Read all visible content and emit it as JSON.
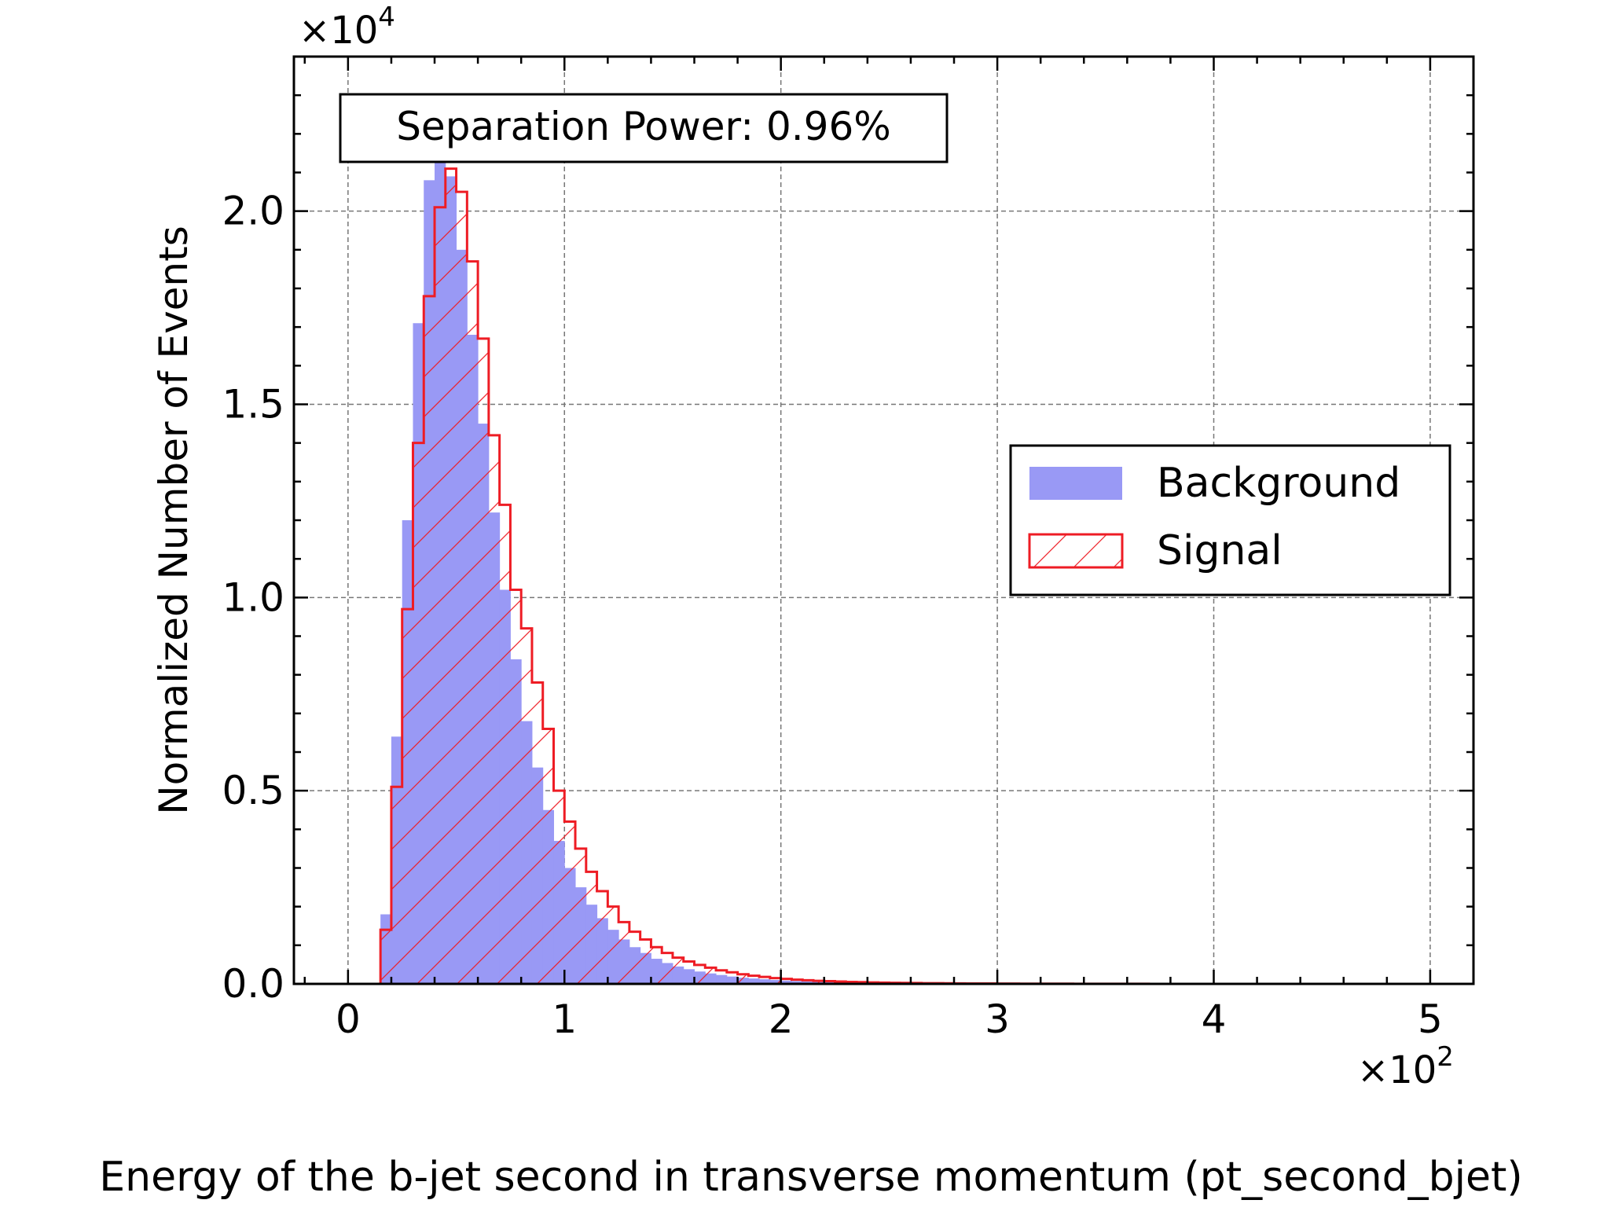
{
  "chart_data": {
    "type": "bar",
    "title": "",
    "xlabel": "Energy of the b-jet second in transverse momentum (pt_second_bjet)",
    "ylabel": "Normalized Number of Events",
    "x_multiplier_label": "×10",
    "x_multiplier_exp": "2",
    "y_multiplier_label": "×10",
    "y_multiplier_exp": "4",
    "xlim": [
      -25,
      520
    ],
    "ylim": [
      0,
      24000
    ],
    "x_ticks": [
      0,
      100,
      200,
      300,
      400,
      500
    ],
    "x_tick_labels": [
      "0",
      "1",
      "2",
      "3",
      "4",
      "5"
    ],
    "y_ticks": [
      0,
      5000,
      10000,
      15000,
      20000
    ],
    "y_tick_labels": [
      "0.0",
      "0.5",
      "1.0",
      "1.5",
      "2.0"
    ],
    "grid": true,
    "legend_position": "center-right",
    "annotation": "Separation Power: 0.96%",
    "bin_start": 15,
    "bin_width": 5,
    "series": [
      {
        "name": "Background",
        "style": "filled",
        "color": "#9999f5",
        "values": [
          1800,
          6400,
          12000,
          17100,
          20800,
          22200,
          20900,
          19000,
          16800,
          14500,
          12200,
          10200,
          8400,
          6800,
          5600,
          4500,
          3700,
          3000,
          2500,
          2050,
          1700,
          1400,
          1150,
          950,
          800,
          650,
          540,
          450,
          380,
          320,
          270,
          230,
          190,
          160,
          140,
          120,
          100,
          85,
          72,
          62,
          53,
          45,
          38,
          33,
          28,
          24,
          21,
          18,
          15,
          13,
          11,
          10,
          9,
          8,
          7,
          6,
          5,
          5,
          4,
          4,
          3,
          3,
          3,
          2,
          2,
          2,
          2,
          2,
          1,
          1,
          1,
          1,
          1,
          1,
          1,
          1,
          1
        ]
      },
      {
        "name": "Signal",
        "style": "hatched-step",
        "color": "#ee1c24",
        "values": [
          1400,
          5100,
          9700,
          14000,
          17800,
          20100,
          21100,
          20500,
          18700,
          16700,
          14200,
          12400,
          10200,
          9200,
          7800,
          6600,
          5000,
          4200,
          3500,
          2900,
          2400,
          2000,
          1600,
          1350,
          1150,
          950,
          800,
          680,
          580,
          490,
          420,
          350,
          300,
          250,
          210,
          180,
          150,
          130,
          110,
          95,
          80,
          70,
          60,
          52,
          45,
          39,
          34,
          29,
          25,
          22,
          19,
          17,
          15,
          13,
          11,
          10,
          9,
          8,
          7,
          6,
          5,
          5,
          4,
          4,
          3,
          3,
          3,
          2,
          2,
          2,
          2,
          1,
          1,
          1,
          1,
          1,
          1
        ]
      }
    ]
  }
}
